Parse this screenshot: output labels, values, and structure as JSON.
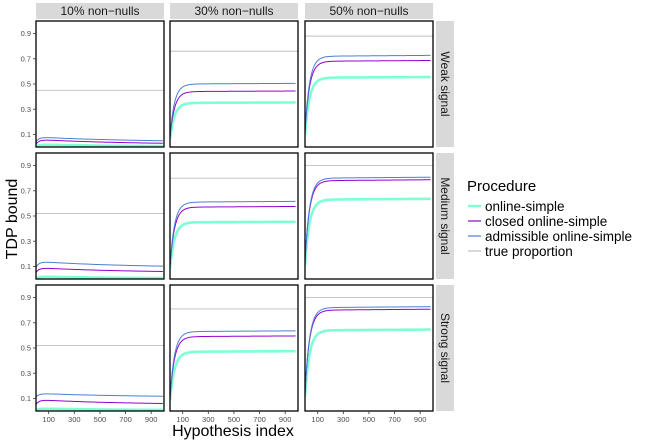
{
  "chart_data": {
    "type": "line",
    "layout": "facet-grid",
    "xlabel": "Hypothesis index",
    "ylabel": "TDP bound",
    "xlim": [
      1,
      1000
    ],
    "ylim": [
      0.0,
      1.0
    ],
    "x_ticks": [
      100,
      300,
      500,
      700,
      900
    ],
    "x_tick_labels": [
      "100",
      "300",
      "500",
      "700",
      "900"
    ],
    "y_ticks": [
      0.1,
      0.3,
      0.5,
      0.7,
      0.9
    ],
    "y_tick_labels": [
      "0.1",
      "0.3",
      "0.5",
      "0.7",
      "0.9"
    ],
    "columns": [
      "10% non−nulls",
      "30% non−nulls",
      "50% non−nulls"
    ],
    "rows": [
      "Weak signal",
      "Medium signal",
      "Strong signal"
    ],
    "legend": {
      "title": "Procedure",
      "items": [
        {
          "name": "online-simple",
          "color": "#7fffd4"
        },
        {
          "name": "closed online-simple",
          "color": "#9400d3"
        },
        {
          "name": "admissible online-simple",
          "color": "#4a80d0"
        },
        {
          "name": "true proportion",
          "color": "#bebebe"
        }
      ]
    },
    "panels": [
      {
        "row": "Weak signal",
        "column": "10% non−nulls",
        "true": 0.45,
        "series": [
          {
            "name": "online-simple",
            "plateau": 0.005,
            "peak": 0.02,
            "final": 0.003
          },
          {
            "name": "closed online-simple",
            "plateau": 0.02,
            "peak": 0.06,
            "final": 0.02
          },
          {
            "name": "admissible online-simple",
            "plateau": 0.04,
            "peak": 0.08,
            "final": 0.04
          }
        ]
      },
      {
        "row": "Weak signal",
        "column": "30% non−nulls",
        "true": 0.76,
        "series": [
          {
            "name": "online-simple",
            "plateau": 0.35
          },
          {
            "name": "closed online-simple",
            "plateau": 0.44
          },
          {
            "name": "admissible online-simple",
            "plateau": 0.5
          }
        ]
      },
      {
        "row": "Weak signal",
        "column": "50% non−nulls",
        "true": 0.88,
        "series": [
          {
            "name": "online-simple",
            "plateau": 0.55
          },
          {
            "name": "closed online-simple",
            "plateau": 0.68
          },
          {
            "name": "admissible online-simple",
            "plateau": 0.72
          }
        ]
      },
      {
        "row": "Medium signal",
        "column": "10% non−nulls",
        "true": 0.52,
        "series": [
          {
            "name": "online-simple",
            "plateau": 0.005,
            "peak": 0.02,
            "final": 0.003
          },
          {
            "name": "closed online-simple",
            "plateau": 0.05,
            "peak": 0.09,
            "final": 0.05
          },
          {
            "name": "admissible online-simple",
            "plateau": 0.09,
            "peak": 0.14,
            "final": 0.09
          }
        ]
      },
      {
        "row": "Medium signal",
        "column": "30% non−nulls",
        "true": 0.8,
        "series": [
          {
            "name": "online-simple",
            "plateau": 0.45
          },
          {
            "name": "closed online-simple",
            "plateau": 0.57
          },
          {
            "name": "admissible online-simple",
            "plateau": 0.61
          }
        ]
      },
      {
        "row": "Medium signal",
        "column": "50% non−nulls",
        "true": 0.9,
        "series": [
          {
            "name": "online-simple",
            "plateau": 0.63
          },
          {
            "name": "closed online-simple",
            "plateau": 0.78
          },
          {
            "name": "admissible online-simple",
            "plateau": 0.8
          }
        ]
      },
      {
        "row": "Strong signal",
        "column": "10% non−nulls",
        "true": 0.52,
        "series": [
          {
            "name": "online-simple",
            "plateau": 0.01,
            "peak": 0.02,
            "final": 0.005
          },
          {
            "name": "closed online-simple",
            "plateau": 0.05,
            "peak": 0.09,
            "final": 0.05
          },
          {
            "name": "admissible online-simple",
            "plateau": 0.11,
            "peak": 0.14,
            "final": 0.11
          }
        ]
      },
      {
        "row": "Strong signal",
        "column": "30% non−nulls",
        "true": 0.81,
        "series": [
          {
            "name": "online-simple",
            "plateau": 0.47
          },
          {
            "name": "closed online-simple",
            "plateau": 0.59
          },
          {
            "name": "admissible online-simple",
            "plateau": 0.63
          }
        ]
      },
      {
        "row": "Strong signal",
        "column": "50% non−nulls",
        "true": 0.9,
        "series": [
          {
            "name": "online-simple",
            "plateau": 0.64
          },
          {
            "name": "closed online-simple",
            "plateau": 0.8
          },
          {
            "name": "admissible online-simple",
            "plateau": 0.82
          }
        ]
      }
    ]
  }
}
